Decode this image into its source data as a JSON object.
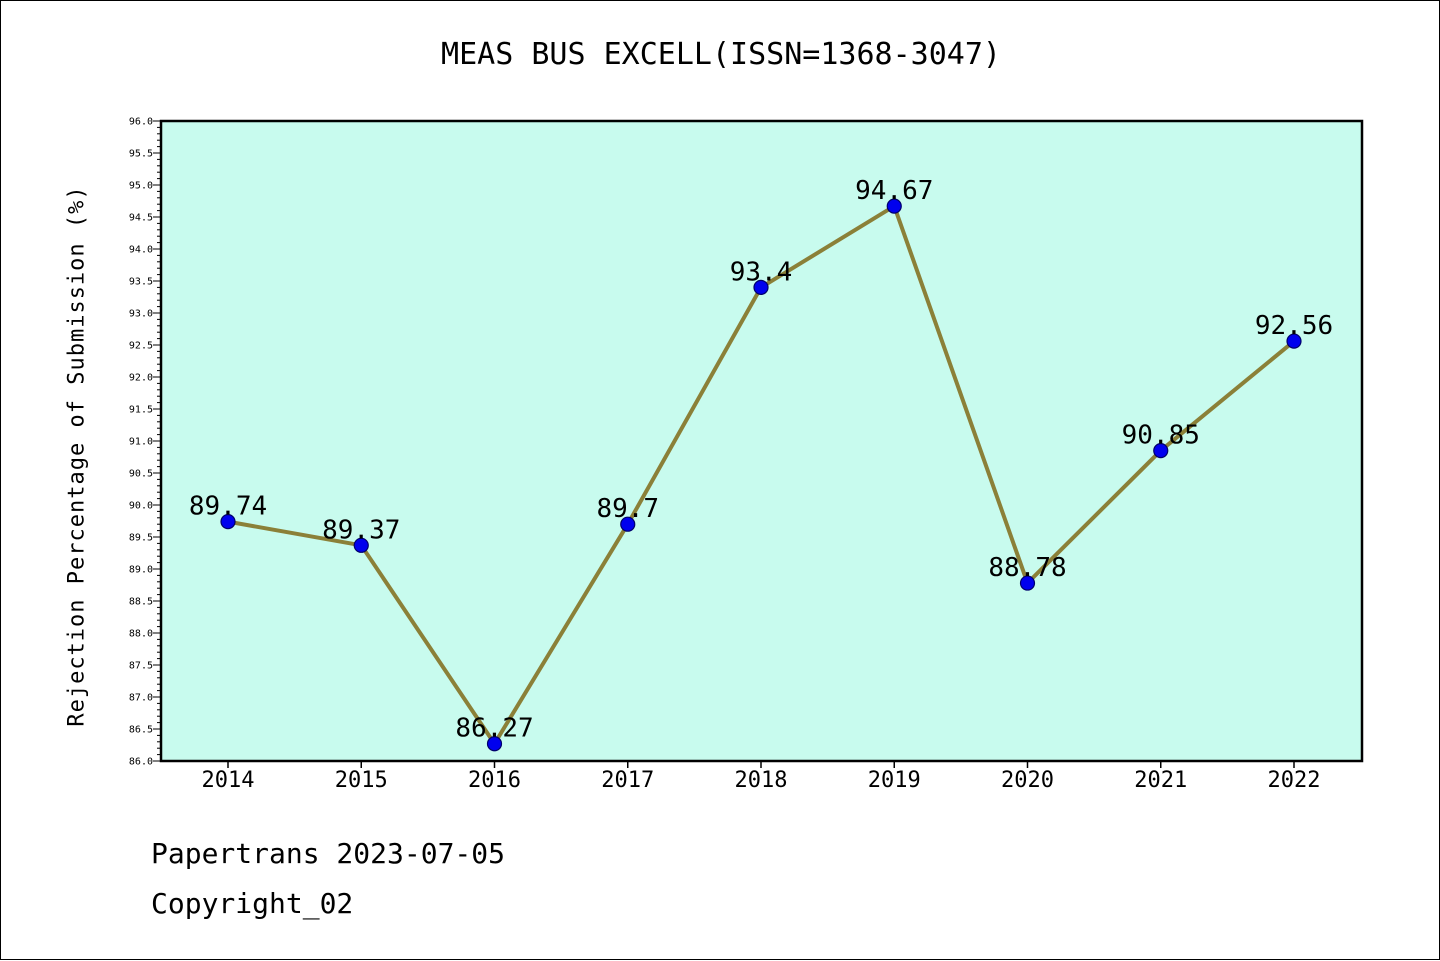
{
  "chart_data": {
    "type": "line",
    "title": "MEAS BUS EXCELL(ISSN=1368-3047)",
    "xlabel": "",
    "ylabel": "Rejection Percentage of Submission (%)",
    "categories": [
      "2014",
      "2015",
      "2016",
      "2017",
      "2018",
      "2019",
      "2020",
      "2021",
      "2022"
    ],
    "series": [
      {
        "values": [
          89.74,
          89.37,
          86.27,
          89.7,
          93.4,
          94.67,
          88.78,
          90.85,
          92.56
        ]
      }
    ],
    "data_labels": [
      "89.74",
      "89.37",
      "86.27",
      "89.7",
      "93.4",
      "94.67",
      "88.78",
      "90.85",
      "92.56"
    ],
    "ylim": [
      86.0,
      96.0
    ],
    "ytick_labels": [
      "86.0",
      "86.5",
      "87.0",
      "87.5",
      "88.0",
      "88.5",
      "89.0",
      "89.5",
      "90.0",
      "90.5",
      "91.0",
      "91.5",
      "92.0",
      "92.5",
      "93.0",
      "93.5",
      "94.0",
      "94.5",
      "95.0",
      "95.5",
      "96.0"
    ],
    "grid": false,
    "legend": "none",
    "colors": {
      "plot_background": "#c8fbee",
      "line": "#8b8038",
      "marker": "#0000ee",
      "marker_edge": "#00006b"
    }
  },
  "footer": {
    "line1": "Papertrans 2023-07-05",
    "line2": "Copyright_02"
  }
}
